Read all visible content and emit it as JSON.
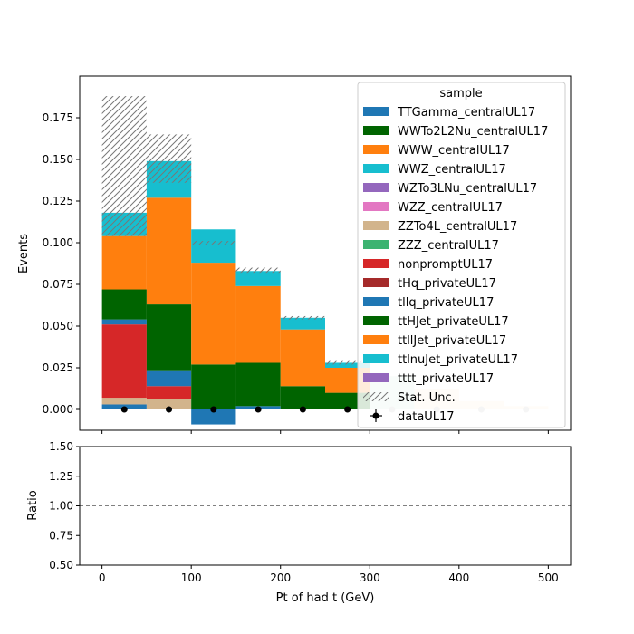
{
  "chart_data": {
    "type": "bar",
    "stacked": true,
    "x_edges": [
      0,
      50,
      100,
      150,
      200,
      250,
      300,
      350,
      400,
      450,
      500
    ],
    "xlabel": "Pt of had t (GeV)",
    "xlim": [
      -25,
      525
    ],
    "xticks": [
      0,
      100,
      200,
      300,
      400,
      500
    ],
    "main": {
      "ylabel": "Events",
      "ylim": [
        -0.0125,
        0.2
      ],
      "yticks": [
        0.0,
        0.025,
        0.05,
        0.075,
        0.1,
        0.125,
        0.15,
        0.175
      ],
      "ytick_labels": [
        "0.000",
        "0.025",
        "0.050",
        "0.075",
        "0.100",
        "0.125",
        "0.150",
        "0.175"
      ]
    },
    "ratio": {
      "ylabel": "Ratio",
      "ylim": [
        0.5,
        1.5
      ],
      "yticks": [
        0.5,
        0.75,
        1.0,
        1.25,
        1.5
      ],
      "ytick_labels": [
        "0.50",
        "0.75",
        "1.00",
        "1.25",
        "1.50"
      ],
      "reference_line": 1.0
    },
    "legend_title": "sample",
    "legend_placement": "upper right",
    "series": [
      {
        "name": "TTGamma_centralUL17",
        "color": "#1f77b4",
        "values": [
          0.003,
          0.0,
          -0.009,
          0.002,
          0.0,
          0.0,
          0.0,
          0.0,
          0.0,
          0.0
        ]
      },
      {
        "name": "WWTo2L2Nu_centralUL17",
        "color": "#006400",
        "values": [
          0.0,
          0.0,
          0.0,
          0.0,
          0.0,
          0.0,
          0.0,
          0.0,
          0.0,
          0.0
        ]
      },
      {
        "name": "WWW_centralUL17",
        "color": "#ff7f0e",
        "values": [
          0.0,
          0.0,
          0.0,
          0.0,
          0.0,
          0.0,
          0.0,
          0.0,
          0.0,
          0.0
        ]
      },
      {
        "name": "WWZ_centralUL17",
        "color": "#17becf",
        "values": [
          0.0,
          0.0,
          0.0,
          0.0,
          0.0,
          0.0,
          0.0,
          0.0,
          0.0,
          0.0
        ]
      },
      {
        "name": "WZTo3LNu_centralUL17",
        "color": "#9467bd",
        "values": [
          0.0,
          0.0,
          0.0,
          0.0,
          0.0,
          0.0,
          0.0,
          0.0,
          0.0,
          0.0
        ]
      },
      {
        "name": "WZZ_centralUL17",
        "color": "#e377c2",
        "values": [
          0.0,
          0.0,
          0.0,
          0.0,
          0.0,
          0.0,
          0.0,
          0.0,
          0.0,
          0.0
        ]
      },
      {
        "name": "ZZTo4L_centralUL17",
        "color": "#d2b48c",
        "values": [
          0.004,
          0.006,
          0.0,
          0.0,
          0.0,
          0.0,
          0.0,
          0.0,
          0.0,
          0.0
        ]
      },
      {
        "name": "ZZZ_centralUL17",
        "color": "#3cb371",
        "values": [
          0.0,
          0.0,
          0.0,
          0.0,
          0.0,
          0.0,
          0.0,
          0.0,
          0.0,
          0.0
        ]
      },
      {
        "name": "nonpromptUL17",
        "color": "#d62728",
        "values": [
          0.044,
          0.008,
          0.0,
          0.0,
          0.0,
          0.0,
          0.0,
          0.0,
          0.0,
          0.0
        ]
      },
      {
        "name": "tHq_privateUL17",
        "color": "#a52a2a",
        "values": [
          0.0,
          0.0,
          0.0,
          0.0,
          0.0,
          0.0,
          0.0,
          0.0,
          0.0,
          0.0
        ]
      },
      {
        "name": "tllq_privateUL17",
        "color": "#1f77b4",
        "values": [
          0.003,
          0.009,
          0.0,
          0.0,
          0.0,
          0.0,
          0.0,
          0.0,
          0.0,
          0.0
        ]
      },
      {
        "name": "ttHJet_privateUL17",
        "color": "#006400",
        "values": [
          0.018,
          0.04,
          0.027,
          0.026,
          0.014,
          0.01,
          0.0,
          0.0,
          0.0,
          0.0
        ]
      },
      {
        "name": "ttllJet_privateUL17",
        "color": "#ff7f0e",
        "values": [
          0.032,
          0.064,
          0.061,
          0.046,
          0.034,
          0.015,
          0.0,
          0.0,
          0.0,
          0.0
        ]
      },
      {
        "name": "ttlnuJet_privateUL17",
        "color": "#17becf",
        "values": [
          0.014,
          0.022,
          0.02,
          0.009,
          0.007,
          0.003,
          0.0,
          0.0,
          0.0,
          0.0
        ]
      },
      {
        "name": "tttt_privateUL17",
        "color": "#9467bd",
        "values": [
          0.0,
          0.0,
          0.0,
          0.0,
          0.0,
          0.0,
          0.0,
          0.0,
          0.0,
          0.0
        ]
      }
    ],
    "faded_bins": {
      "note_values_in_data_units": true,
      "bins": [
        {
          "x0": 300,
          "x1": 350,
          "bottom": 0.0,
          "top": 0.02,
          "color": "#cfe9d9"
        },
        {
          "x0": 350,
          "x1": 400,
          "bottom": 0.0,
          "top": 0.012,
          "color": "#fde6cc"
        },
        {
          "x0": 400,
          "x1": 450,
          "bottom": 0.0,
          "top": 0.005,
          "color": "#fde6cc"
        },
        {
          "x0": 450,
          "x1": 500,
          "bottom": 0.0,
          "top": 0.002,
          "color": "#fde6cc"
        }
      ]
    },
    "stat_unc": {
      "label": "Stat. Unc.",
      "bins": [
        {
          "low": 0.104,
          "high": 0.188
        },
        {
          "low": 0.136,
          "high": 0.165
        },
        {
          "low": 0.099,
          "high": 0.101
        },
        {
          "low": 0.082,
          "high": 0.085
        },
        {
          "low": 0.054,
          "high": 0.056
        },
        {
          "low": 0.027,
          "high": 0.029
        }
      ]
    },
    "data": {
      "name": "dataUL17",
      "x": [
        25,
        75,
        125,
        175,
        225,
        275,
        325,
        375,
        425,
        475
      ],
      "y": [
        0.0,
        0.0,
        0.0,
        0.0,
        0.0,
        0.0,
        0.0,
        0.0,
        0.0,
        0.0
      ]
    }
  }
}
